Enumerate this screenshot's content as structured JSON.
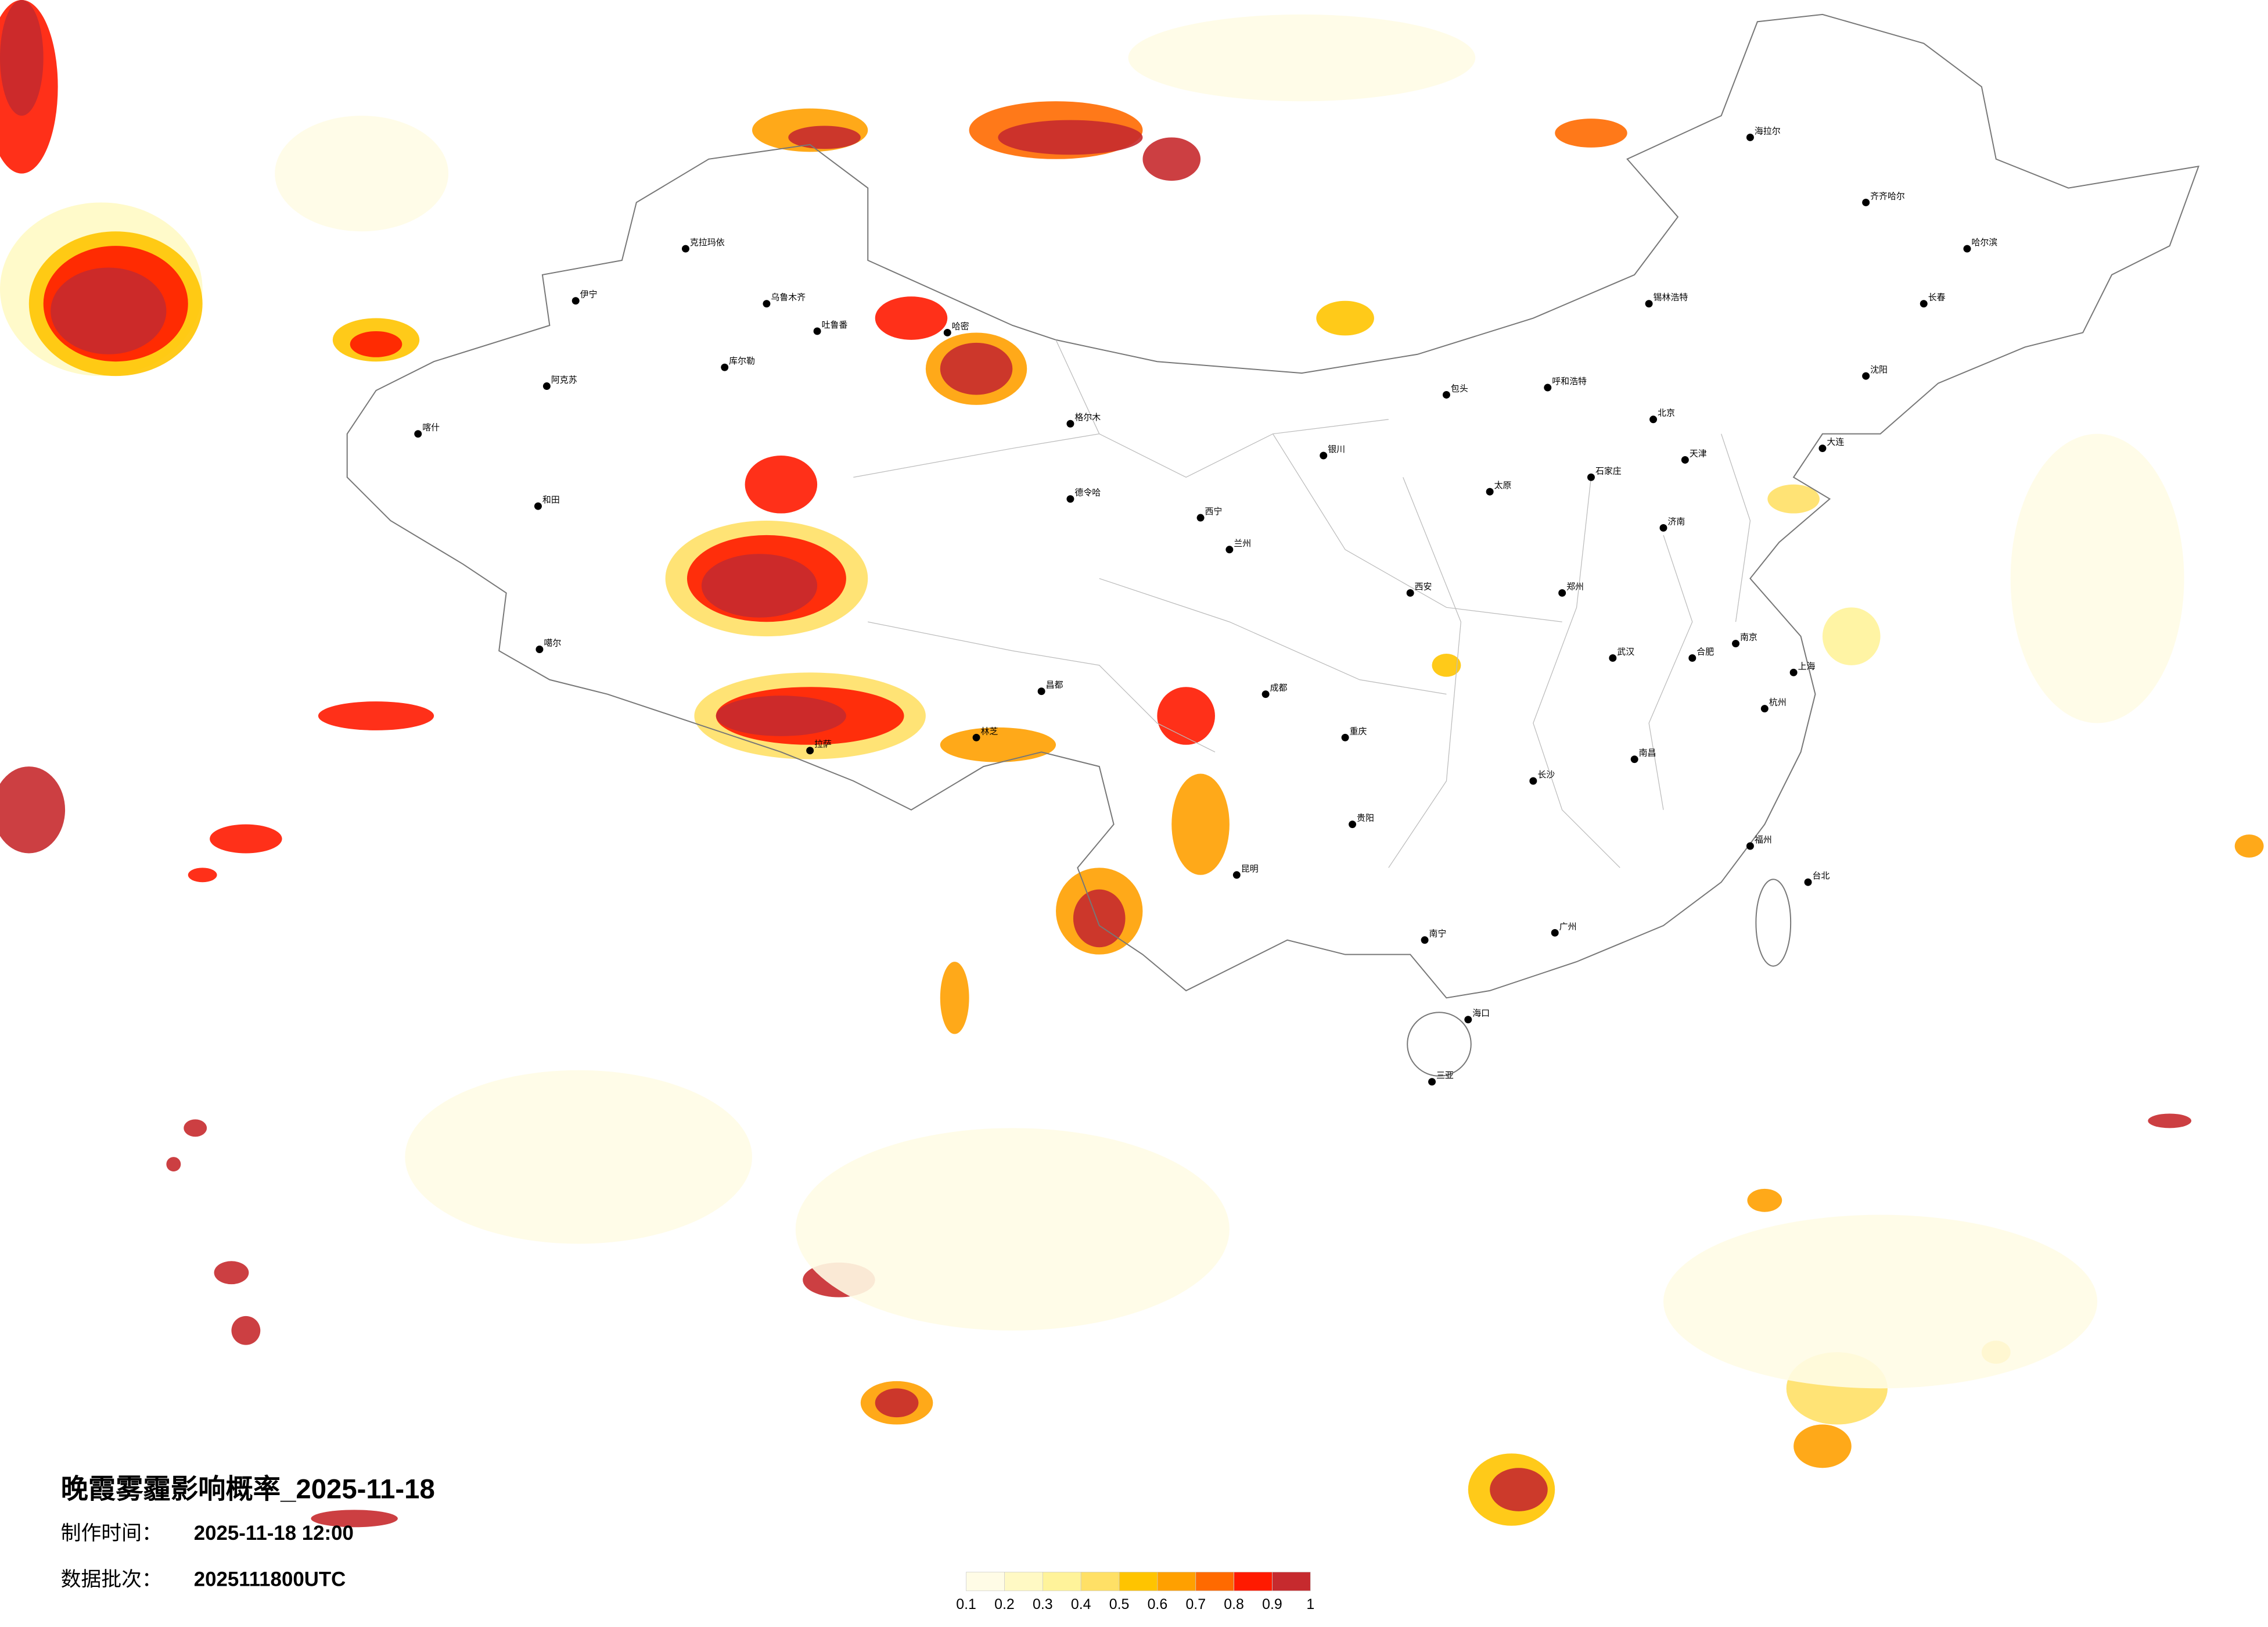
{
  "header": {
    "title": "晚霞雾霾影响概率_2025-11-18",
    "made_label": "制作时间：",
    "made_value": "2025-11-18 12:00",
    "batch_label": "数据批次：",
    "batch_value": "2025111800UTC"
  },
  "legend": {
    "ticks": [
      0.1,
      0.2,
      0.3,
      0.4,
      0.5,
      0.6,
      0.7,
      0.8,
      0.9,
      1
    ],
    "colors": [
      "#fffce6",
      "#fff9c4",
      "#fff39a",
      "#ffe066",
      "#ffc400",
      "#ffa000",
      "#ff6a00",
      "#ff1a00",
      "#c62a2e"
    ]
  },
  "cities": [
    "克拉玛依",
    "乌鲁木齐",
    "吐鲁番",
    "伊宁",
    "库尔勒",
    "阿克苏",
    "喀什",
    "和田",
    "哈密",
    "噶尔",
    "拉萨",
    "林芝",
    "昌都",
    "格尔木",
    "德令哈",
    "西宁",
    "兰州",
    "银川",
    "呼和浩特",
    "包头",
    "北京",
    "天津",
    "石家庄",
    "太原",
    "济南",
    "郑州",
    "西安",
    "成都",
    "重庆",
    "贵阳",
    "昆明",
    "南宁",
    "广州",
    "长沙",
    "武汉",
    "南京",
    "上海",
    "杭州",
    "福州",
    "南昌",
    "合肥",
    "海口",
    "三亚",
    "哈尔滨",
    "长春",
    "沈阳",
    "大连",
    "齐齐哈尔",
    "海拉尔",
    "锡林浩特",
    "台北"
  ]
}
